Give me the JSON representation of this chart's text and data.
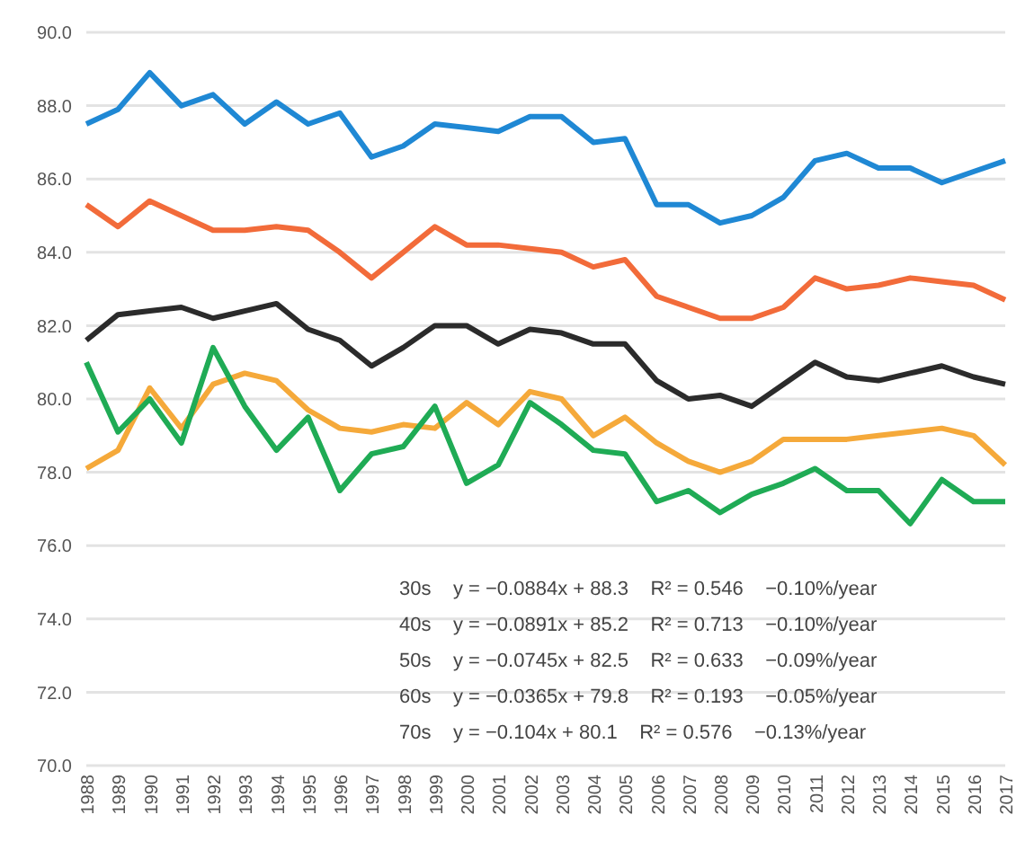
{
  "chart_data": {
    "type": "line",
    "categories": [
      "1988",
      "1989",
      "1990",
      "1991",
      "1992",
      "1993",
      "1994",
      "1995",
      "1996",
      "1997",
      "1998",
      "1999",
      "2000",
      "2001",
      "2002",
      "2003",
      "2004",
      "2005",
      "2006",
      "2007",
      "2008",
      "2009",
      "2010",
      "2011",
      "2012",
      "2013",
      "2014",
      "2015",
      "2016",
      "2017"
    ],
    "series": [
      {
        "color": "#1f88d4",
        "values": [
          87.5,
          87.9,
          88.9,
          88.0,
          88.3,
          87.5,
          88.1,
          87.5,
          87.8,
          86.6,
          86.9,
          87.5,
          87.4,
          87.3,
          87.7,
          87.7,
          87.0,
          87.1,
          85.3,
          85.3,
          84.8,
          85.0,
          85.5,
          86.5,
          86.7,
          86.3,
          86.3,
          85.9,
          86.2,
          86.5
        ]
      },
      {
        "color": "#f26b3a",
        "values": [
          85.3,
          84.7,
          85.4,
          85.0,
          84.6,
          84.6,
          84.7,
          84.6,
          84.0,
          83.3,
          84.0,
          84.7,
          84.2,
          84.2,
          84.1,
          84.0,
          83.6,
          83.8,
          82.8,
          82.5,
          82.2,
          82.2,
          82.5,
          83.3,
          83.0,
          83.1,
          83.3,
          83.2,
          83.1,
          82.7
        ]
      },
      {
        "color": "#2b2b2b",
        "values": [
          81.6,
          82.3,
          82.4,
          82.5,
          82.2,
          82.4,
          82.6,
          81.9,
          81.6,
          80.9,
          81.4,
          82.0,
          82.0,
          81.5,
          81.9,
          81.8,
          81.5,
          81.5,
          80.5,
          80.0,
          80.1,
          79.8,
          80.4,
          81.0,
          80.6,
          80.5,
          80.7,
          80.9,
          80.6,
          80.4
        ]
      },
      {
        "color": "#f5a93a",
        "values": [
          78.1,
          78.6,
          80.3,
          79.2,
          80.4,
          80.7,
          80.5,
          79.7,
          79.2,
          79.1,
          79.3,
          79.2,
          79.9,
          79.3,
          80.2,
          80.0,
          79.0,
          79.5,
          78.8,
          78.3,
          78.0,
          78.3,
          78.9,
          78.9,
          78.9,
          79.0,
          79.1,
          79.2,
          79.0,
          78.2
        ]
      },
      {
        "color": "#1fab55",
        "values": [
          81.0,
          79.1,
          80.0,
          78.8,
          81.4,
          79.8,
          78.6,
          79.5,
          77.5,
          78.5,
          78.7,
          79.8,
          77.7,
          78.2,
          79.9,
          79.3,
          78.6,
          78.5,
          77.2,
          77.5,
          76.9,
          77.4,
          77.7,
          78.1,
          77.5,
          77.5,
          76.6,
          77.8,
          77.2,
          77.2
        ]
      }
    ],
    "ylim": [
      70,
      90
    ],
    "yticks": [
      {
        "value": 70,
        "label": "70.0"
      },
      {
        "value": 72,
        "label": "72.0"
      },
      {
        "value": 74,
        "label": "74.0"
      },
      {
        "value": 76,
        "label": "76.0"
      },
      {
        "value": 78,
        "label": "78.0"
      },
      {
        "value": 80,
        "label": "80.0"
      },
      {
        "value": 82,
        "label": "82.0"
      },
      {
        "value": 84,
        "label": "84.0"
      },
      {
        "value": 86,
        "label": "86.0"
      },
      {
        "value": 88,
        "label": "88.0"
      },
      {
        "value": 90,
        "label": "90.0"
      }
    ],
    "grid": "y",
    "marker": "none",
    "line_style": "solid",
    "annotations": [
      "30s    y = −0.0884x + 88.3    R² = 0.546    −0.10%/year",
      "40s    y = −0.0891x + 85.2    R² = 0.713    −0.10%/year",
      "50s    y = −0.0745x + 82.5    R² = 0.633    −0.09%/year",
      "60s    y = −0.0365x + 79.8    R² = 0.193    −0.05%/year",
      "70s    y = −0.104x + 80.1    R² = 0.576    −0.13%/year"
    ]
  }
}
